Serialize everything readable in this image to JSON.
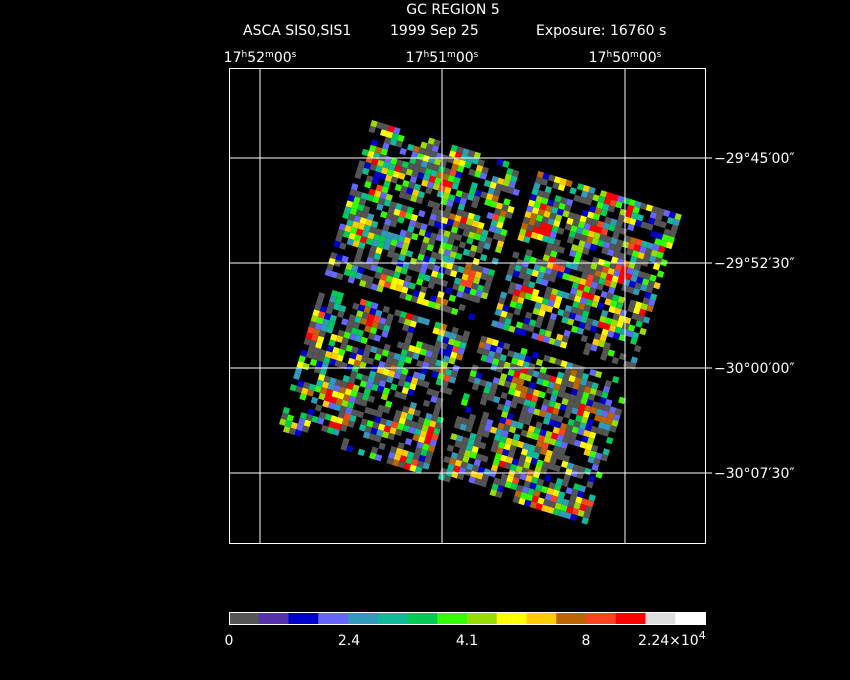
{
  "title": "GC REGION 5",
  "subtitle": {
    "instrument": "ASCA SIS0,SIS1",
    "date": "1999 Sep 25",
    "exposure": "Exposure: 16760 s"
  },
  "ra_labels": [
    [
      "17",
      "h",
      "52",
      "m",
      "00",
      "s"
    ],
    [
      "17",
      "h",
      "51",
      "m",
      "00",
      "s"
    ],
    [
      "17",
      "h",
      "50",
      "m",
      "00",
      "s"
    ]
  ],
  "dec_labels": [
    "−29°45′00″",
    "−29°52′30″",
    "−30°00′00″",
    "−30°07′30″"
  ],
  "colorbar": {
    "colors": [
      "#555555",
      "#5533aa",
      "#0000cc",
      "#6666ff",
      "#3399bb",
      "#11bb99",
      "#00cc55",
      "#33ff00",
      "#99dd00",
      "#ffff00",
      "#ffcc00",
      "#bb6600",
      "#ff4422",
      "#ff0000",
      "#dddddd",
      "#ffffff"
    ],
    "labels": [
      "0",
      "2.4",
      "4.1",
      "8"
    ],
    "max_label": {
      "base": "2.24×10",
      "exponent": "4"
    }
  }
}
